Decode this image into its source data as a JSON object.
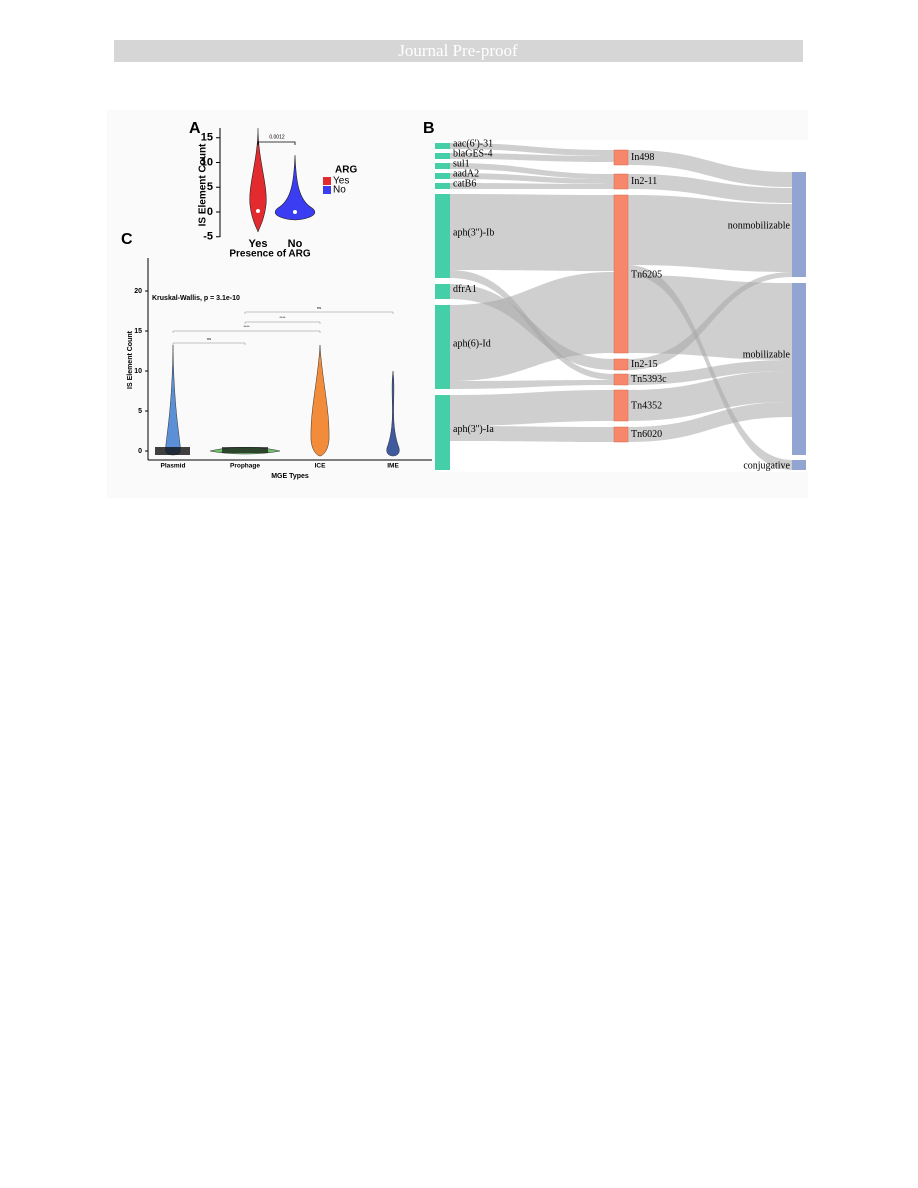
{
  "header": {
    "title": "Journal Pre-proof"
  },
  "figure": {
    "panel_a": {
      "label": "A",
      "y_axis_label": "IS Element Count",
      "yticks": [
        15,
        10,
        5,
        0,
        -5
      ],
      "categories": [
        "Yes",
        "No"
      ],
      "x_axis_label": "Presence of ARG",
      "p_value": "0.0012",
      "legend": {
        "title": "ARG",
        "items": [
          {
            "label": "Yes",
            "color": "#e32b2f"
          },
          {
            "label": "No",
            "color": "#3b3df2"
          }
        ]
      }
    },
    "panel_b": {
      "label": "B",
      "genes": [
        "aac(6')-31",
        "blaGES-4",
        "sul1",
        "aadA2",
        "catB6",
        "aph(3'')-Ib",
        "dfrA1",
        "aph(6)-Id",
        "aph(3'')-Ia"
      ],
      "elements": [
        "In498",
        "In2-11",
        "Tn6205",
        "In2-15",
        "Tn5393c",
        "Tn4352",
        "Tn6020"
      ],
      "mobility": [
        "nonmobilizable",
        "mobilizable",
        "conjugative"
      ]
    },
    "panel_c": {
      "label": "C",
      "test": "Kruskal-Wallis, p = 3.1e-10",
      "y_axis_label": "IS Element Count",
      "yticks": [
        0,
        5,
        10,
        15,
        20
      ],
      "categories": [
        "Plasmid",
        "Prophage",
        "ICE",
        "IME"
      ],
      "x_axis_label": "MGE Types",
      "comparisons": [
        "ns",
        "****",
        "****",
        "ns"
      ]
    }
  }
}
